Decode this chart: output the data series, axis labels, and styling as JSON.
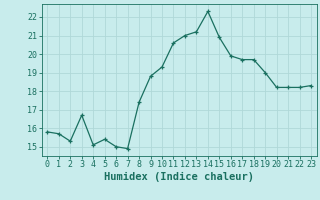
{
  "x": [
    0,
    1,
    2,
    3,
    4,
    5,
    6,
    7,
    8,
    9,
    10,
    11,
    12,
    13,
    14,
    15,
    16,
    17,
    18,
    19,
    20,
    21,
    22,
    23
  ],
  "y": [
    15.8,
    15.7,
    15.3,
    16.7,
    15.1,
    15.4,
    15.0,
    14.9,
    17.4,
    18.8,
    19.3,
    20.6,
    21.0,
    21.2,
    22.3,
    20.9,
    19.9,
    19.7,
    19.7,
    19.0,
    18.2,
    18.2,
    18.2,
    18.3
  ],
  "line_color": "#1a7060",
  "marker": "+",
  "bg_color": "#c8ecec",
  "grid_color": "#b0d8d8",
  "xlabel": "Humidex (Indice chaleur)",
  "ylim": [
    14.5,
    22.7
  ],
  "xlim": [
    -0.5,
    23.5
  ],
  "yticks": [
    15,
    16,
    17,
    18,
    19,
    20,
    21,
    22
  ],
  "xticks": [
    0,
    1,
    2,
    3,
    4,
    5,
    6,
    7,
    8,
    9,
    10,
    11,
    12,
    13,
    14,
    15,
    16,
    17,
    18,
    19,
    20,
    21,
    22,
    23
  ],
  "tick_color": "#1a7060",
  "label_fontsize": 7.5,
  "tick_fontsize": 6.0
}
